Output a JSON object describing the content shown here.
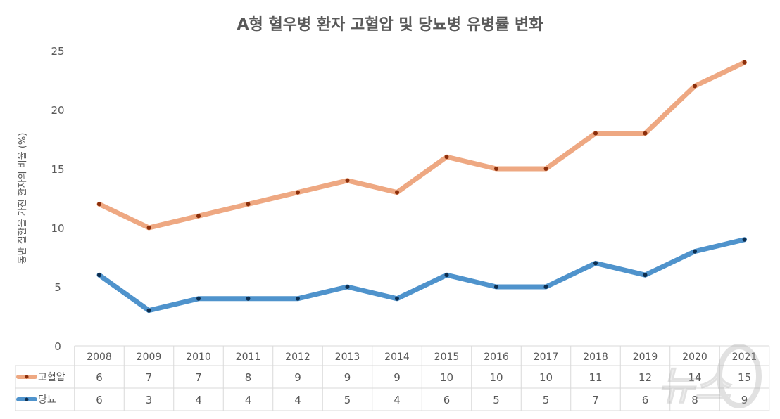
{
  "chart_data": {
    "type": "line",
    "title": "A형 혈우병 환자 고혈압 및 당뇨병 유병률 변화",
    "ylabel": "동반 질환을 가진 환자의 비율 (%)",
    "xlabel": "",
    "ylim": [
      0,
      25
    ],
    "yticks": [
      0,
      5,
      10,
      15,
      20,
      25
    ],
    "grid": false,
    "categories": [
      "2008",
      "2009",
      "2010",
      "2011",
      "2012",
      "2013",
      "2014",
      "2015",
      "2016",
      "2017",
      "2018",
      "2019",
      "2020",
      "2021"
    ],
    "series": [
      {
        "name": "고혈압",
        "color": "#EEA882",
        "marker_color": "#8B2E0A",
        "values": [
          12,
          10,
          11,
          12,
          13,
          14,
          13,
          16,
          15,
          15,
          18,
          18,
          22,
          24
        ],
        "table_values": [
          "6",
          "7",
          "7",
          "8",
          "9",
          "9",
          "9",
          "10",
          "10",
          "10",
          "11",
          "12",
          "14",
          "15"
        ]
      },
      {
        "name": "당뇨",
        "color": "#4F93CC",
        "marker_color": "#0D2E4F",
        "values": [
          6,
          3,
          4,
          4,
          4,
          5,
          4,
          6,
          5,
          5,
          7,
          6,
          8,
          9
        ],
        "table_values": [
          "6",
          "3",
          "4",
          "4",
          "4",
          "5",
          "4",
          "6",
          "5",
          "5",
          "7",
          "6",
          "8",
          "9"
        ]
      }
    ],
    "data_table": true
  },
  "watermark": "뉴스1"
}
